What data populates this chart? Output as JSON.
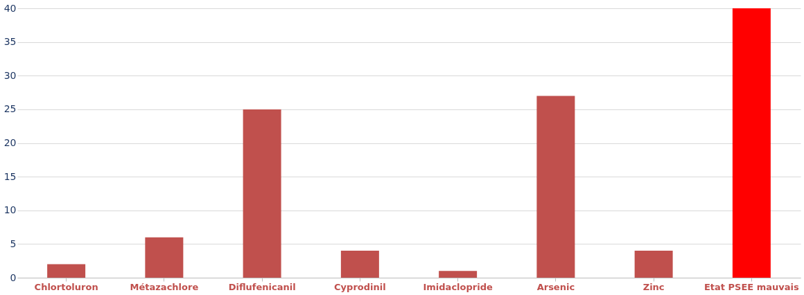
{
  "chart_data": {
    "type": "bar",
    "categories": [
      "Chlortoluron",
      "Métazachlore",
      "Diflufenicanil",
      "Cyprodinil",
      "Imidaclopride",
      "Arsenic",
      "Zinc",
      "Etat PSEE mauvais"
    ],
    "values": [
      2,
      6,
      25,
      4,
      1,
      27,
      4,
      40
    ],
    "colors": [
      "#c0504d",
      "#c0504d",
      "#c0504d",
      "#c0504d",
      "#c0504d",
      "#c0504d",
      "#c0504d",
      "#ff0000"
    ],
    "ylim": [
      0,
      40
    ],
    "yticks": [
      0,
      5,
      10,
      15,
      20,
      25,
      30,
      35,
      40
    ],
    "grid": "y"
  }
}
